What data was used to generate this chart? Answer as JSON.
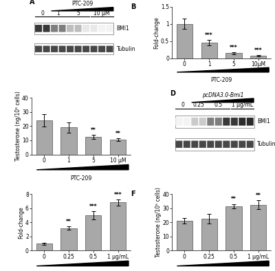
{
  "panel_B": {
    "categories": [
      "0",
      "1",
      "5",
      "10μM"
    ],
    "values": [
      1.0,
      0.45,
      0.15,
      0.07
    ],
    "errors": [
      0.15,
      0.08,
      0.03,
      0.02
    ],
    "sig": [
      "",
      "***",
      "***",
      "***"
    ],
    "ylabel": "Fold-change",
    "xlabel_label": "PTC-209",
    "ylim": [
      0,
      1.5
    ],
    "yticks": [
      0.0,
      0.5,
      1.0,
      1.5
    ]
  },
  "panel_C": {
    "categories": [
      "0",
      "1",
      "5",
      "10 μM"
    ],
    "values": [
      24.0,
      19.0,
      12.5,
      10.5
    ],
    "errors": [
      4.5,
      3.5,
      1.5,
      0.8
    ],
    "sig": [
      "",
      "",
      "**",
      "**"
    ],
    "ylabel": "Testosterone (ng/10⁵ cells)",
    "xlabel_label": "PTC-209",
    "ylim": [
      0,
      40
    ],
    "yticks": [
      0,
      10,
      20,
      30,
      40
    ]
  },
  "panel_E": {
    "categories": [
      "0",
      "0.25",
      "0.5",
      "1 μg/mL"
    ],
    "values": [
      1.0,
      3.2,
      5.0,
      6.8
    ],
    "errors": [
      0.15,
      0.2,
      0.6,
      0.4
    ],
    "sig": [
      "",
      "**",
      "***",
      "***"
    ],
    "ylabel": "Fold-change",
    "xlabel_label": "pcDNA3.0-Bmi1",
    "ylim": [
      0,
      8
    ],
    "yticks": [
      0,
      2,
      4,
      6,
      8
    ]
  },
  "panel_F": {
    "categories": [
      "0",
      "0.25",
      "0.5",
      "1 μg/mL"
    ],
    "values": [
      21.0,
      22.5,
      31.5,
      32.5
    ],
    "errors": [
      2.0,
      3.5,
      1.5,
      3.0
    ],
    "sig": [
      "",
      "",
      "**",
      "**"
    ],
    "ylabel": "Testosterone (ng/10⁵ cells)",
    "xlabel_label": "pcDNA3.0-Bmi1",
    "ylim": [
      0,
      40
    ],
    "yticks": [
      0,
      10,
      20,
      30,
      40
    ]
  },
  "blot_A": {
    "dose_labels": [
      "0",
      "1",
      "5",
      "10 μM"
    ],
    "top_label": "PTC-209",
    "lanes_per_group": [
      2,
      2,
      3,
      3
    ],
    "band1_intens": [
      0.85,
      0.85,
      0.55,
      0.55,
      0.28,
      0.28,
      0.1,
      0.1,
      0.05,
      0.05
    ],
    "band2_intens": [
      0.85,
      0.85,
      0.85,
      0.85,
      0.85,
      0.85,
      0.85,
      0.85,
      0.85,
      0.85
    ],
    "band1_label": "BMI1",
    "band2_label": "Tubulin"
  },
  "blot_D": {
    "dose_labels": [
      "0",
      "0.25",
      "0.5",
      "1 μg/mL"
    ],
    "top_label": "pcDNA3.0-Bmi1",
    "lanes_per_group": [
      2,
      2,
      3,
      3
    ],
    "band1_intens": [
      0.05,
      0.05,
      0.22,
      0.22,
      0.55,
      0.55,
      0.85,
      0.85,
      0.9,
      0.9
    ],
    "band2_intens": [
      0.85,
      0.85,
      0.85,
      0.85,
      0.85,
      0.85,
      0.85,
      0.85,
      0.85,
      0.85
    ],
    "band1_label": "BMI1",
    "band2_label": "Tubulin"
  },
  "bar_color": "#a8a8a8",
  "bar_edge_color": "#505050",
  "fig_bg": "#ffffff",
  "tick_fontsize": 5.5,
  "label_fontsize": 5.5,
  "panel_label_fontsize": 7,
  "sig_fontsize": 5.5
}
